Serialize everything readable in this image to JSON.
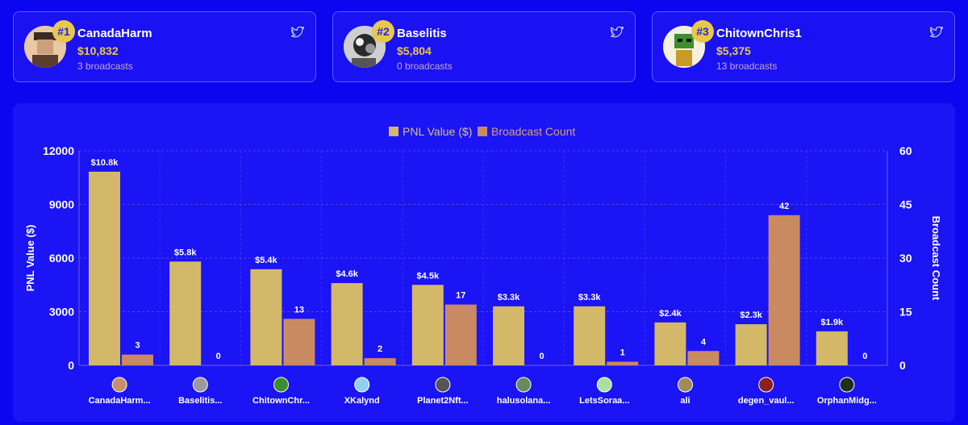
{
  "leaderboard": [
    {
      "rank": "#1",
      "name": "CanadaHarm",
      "pnl": "$10,832",
      "broadcasts": "3 broadcasts",
      "icon": "twitter-icon"
    },
    {
      "rank": "#2",
      "name": "Baselitis",
      "pnl": "$5,804",
      "broadcasts": "0 broadcasts",
      "icon": "twitter-icon"
    },
    {
      "rank": "#3",
      "name": "ChitownChris1",
      "pnl": "$5,375",
      "broadcasts": "13 broadcasts",
      "icon": "twitter-icon"
    }
  ],
  "colors": {
    "background": "#0c05f0",
    "panel": "#1b14f4",
    "pnl_bar": "#d4b86a",
    "broadcast_bar": "#c98a62",
    "gold": "#e9c74e",
    "muted_text": "#c8a3d8"
  },
  "chart_data": {
    "type": "bar",
    "categories": [
      "CanadaHarm...",
      "Baselitis...",
      "ChitownChr...",
      "XKalynd",
      "Planet2Nft...",
      "halusolana...",
      "LetsSoraa...",
      "ali",
      "degen_vaul...",
      "OrphanMidg..."
    ],
    "series": [
      {
        "name": "PNL Value ($)",
        "axis": "left",
        "values": [
          10832,
          5804,
          5375,
          4600,
          4500,
          3300,
          3300,
          2400,
          2300,
          1900
        ],
        "labels": [
          "$10.8k",
          "$5.8k",
          "$5.4k",
          "$4.6k",
          "$4.5k",
          "$3.3k",
          "$3.3k",
          "$2.4k",
          "$2.3k",
          "$1.9k"
        ]
      },
      {
        "name": "Broadcast Count",
        "axis": "right",
        "values": [
          3,
          0,
          13,
          2,
          17,
          0,
          1,
          4,
          42,
          0
        ],
        "labels": [
          "3",
          "0",
          "13",
          "2",
          "17",
          "0",
          "1",
          "4",
          "42",
          "0"
        ]
      }
    ],
    "ylabel": "PNL Value ($)",
    "y2label": "Broadcast Count",
    "ylim": [
      0,
      12000
    ],
    "yticks": [
      "0",
      "3000",
      "6000",
      "9000",
      "12000"
    ],
    "y2lim": [
      0,
      60
    ],
    "y2ticks": [
      "0",
      "15",
      "30",
      "45",
      "60"
    ],
    "grid": true,
    "legend": "top-center"
  }
}
